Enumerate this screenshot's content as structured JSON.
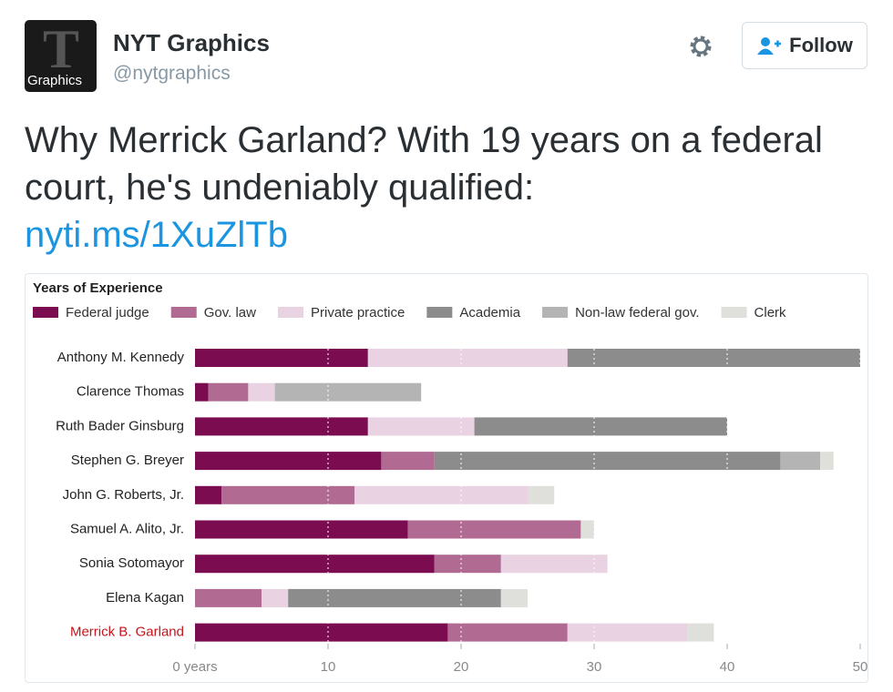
{
  "tweet": {
    "avatar_label": "Graphics",
    "name": "NYT Graphics",
    "handle": "@nytgraphics",
    "follow": "Follow",
    "text": "Why Merrick Garland? With 19 years on a federal court, he's undeniably qualified:",
    "link": "nyti.ms/1XuZlTb"
  },
  "chart_data": {
    "type": "stacked-bar-horizontal",
    "title": "Years of Experience",
    "categories": [
      "Anthony M. Kennedy",
      "Clarence Thomas",
      "Ruth Bader Ginsburg",
      "Stephen G. Breyer",
      "John G. Roberts, Jr.",
      "Samuel A. Alito, Jr.",
      "Sonia Sotomayor",
      "Elena Kagan",
      "Merrick B. Garland"
    ],
    "series": [
      {
        "name": "Federal judge",
        "color": "#7b0c50",
        "values": [
          13,
          1,
          13,
          14,
          2,
          16,
          18,
          0,
          19
        ]
      },
      {
        "name": "Gov. law",
        "color": "#b16b93",
        "values": [
          0,
          3,
          0,
          4,
          10,
          13,
          5,
          5,
          9
        ]
      },
      {
        "name": "Private practice",
        "color": "#e9d2e2",
        "values": [
          15,
          2,
          8,
          0,
          13,
          0,
          8,
          2,
          9
        ]
      },
      {
        "name": "Academia",
        "color": "#8c8c8c",
        "values": [
          22,
          0,
          19,
          26,
          0,
          0,
          0,
          16,
          0
        ]
      },
      {
        "name": "Non-law federal gov.",
        "color": "#b4b4b4",
        "values": [
          0,
          11,
          0,
          3,
          0,
          0,
          0,
          0,
          0
        ]
      },
      {
        "name": "Clerk",
        "color": "#dfdfdb",
        "values": [
          0,
          0,
          0,
          1,
          2,
          1,
          0,
          2,
          2
        ]
      }
    ],
    "xlim": [
      0,
      50
    ],
    "xticks": [
      {
        "value": 0,
        "label": "0 years"
      },
      10,
      20,
      30,
      40,
      50
    ],
    "grid": true
  }
}
